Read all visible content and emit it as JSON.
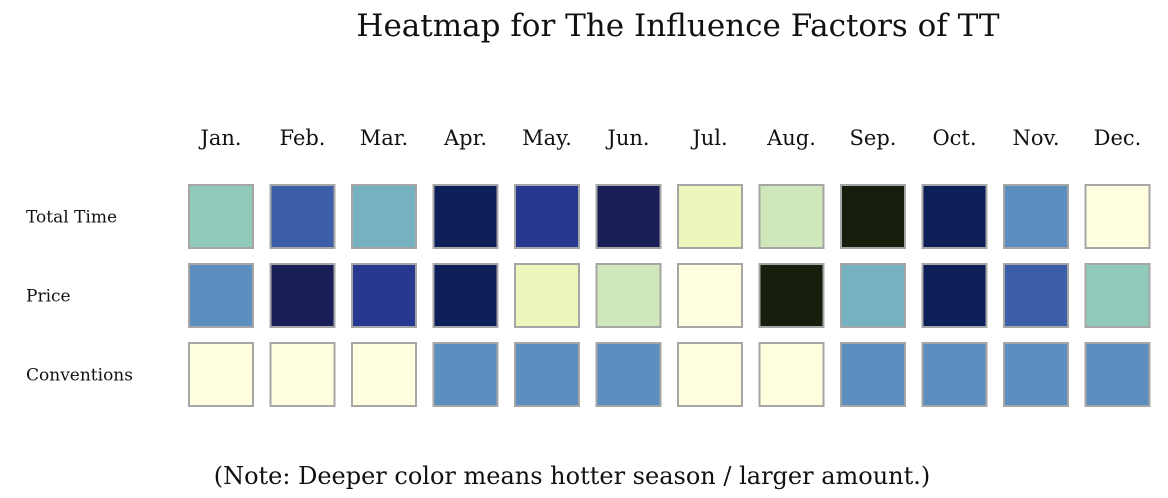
{
  "chart_data": {
    "type": "heatmap",
    "title": "Heatmap for The Influence Factors of TT",
    "columns": [
      "Jan.",
      "Feb.",
      "Mar.",
      "Apr.",
      "May.",
      "Jun.",
      "Jul.",
      "Aug.",
      "Sep.",
      "Oct.",
      "Nov.",
      "Dec."
    ],
    "rows": [
      "Total Time",
      "Price",
      "Conventions"
    ],
    "values": [
      [
        4,
        7,
        5,
        10,
        8,
        11,
        2,
        3,
        12,
        10,
        6,
        1
      ],
      [
        6,
        11,
        8,
        10,
        2,
        3,
        1,
        12,
        5,
        10,
        7,
        4
      ],
      [
        1,
        1,
        1,
        6,
        6,
        6,
        1,
        1,
        6,
        6,
        6,
        6
      ]
    ],
    "color_scale": {
      "1": "#fffedf",
      "2": "#edf6bb",
      "3": "#cfe7bb",
      "4": "#8fcabb",
      "5": "#74b2c2",
      "6": "#5c8fbf",
      "7": "#3c5ea8",
      "8": "#26388f",
      "10": "#0d1f59",
      "11": "#191e56",
      "12": "#161f0e"
    },
    "note": "(Note: Deeper color means hotter season / larger amount.)"
  }
}
